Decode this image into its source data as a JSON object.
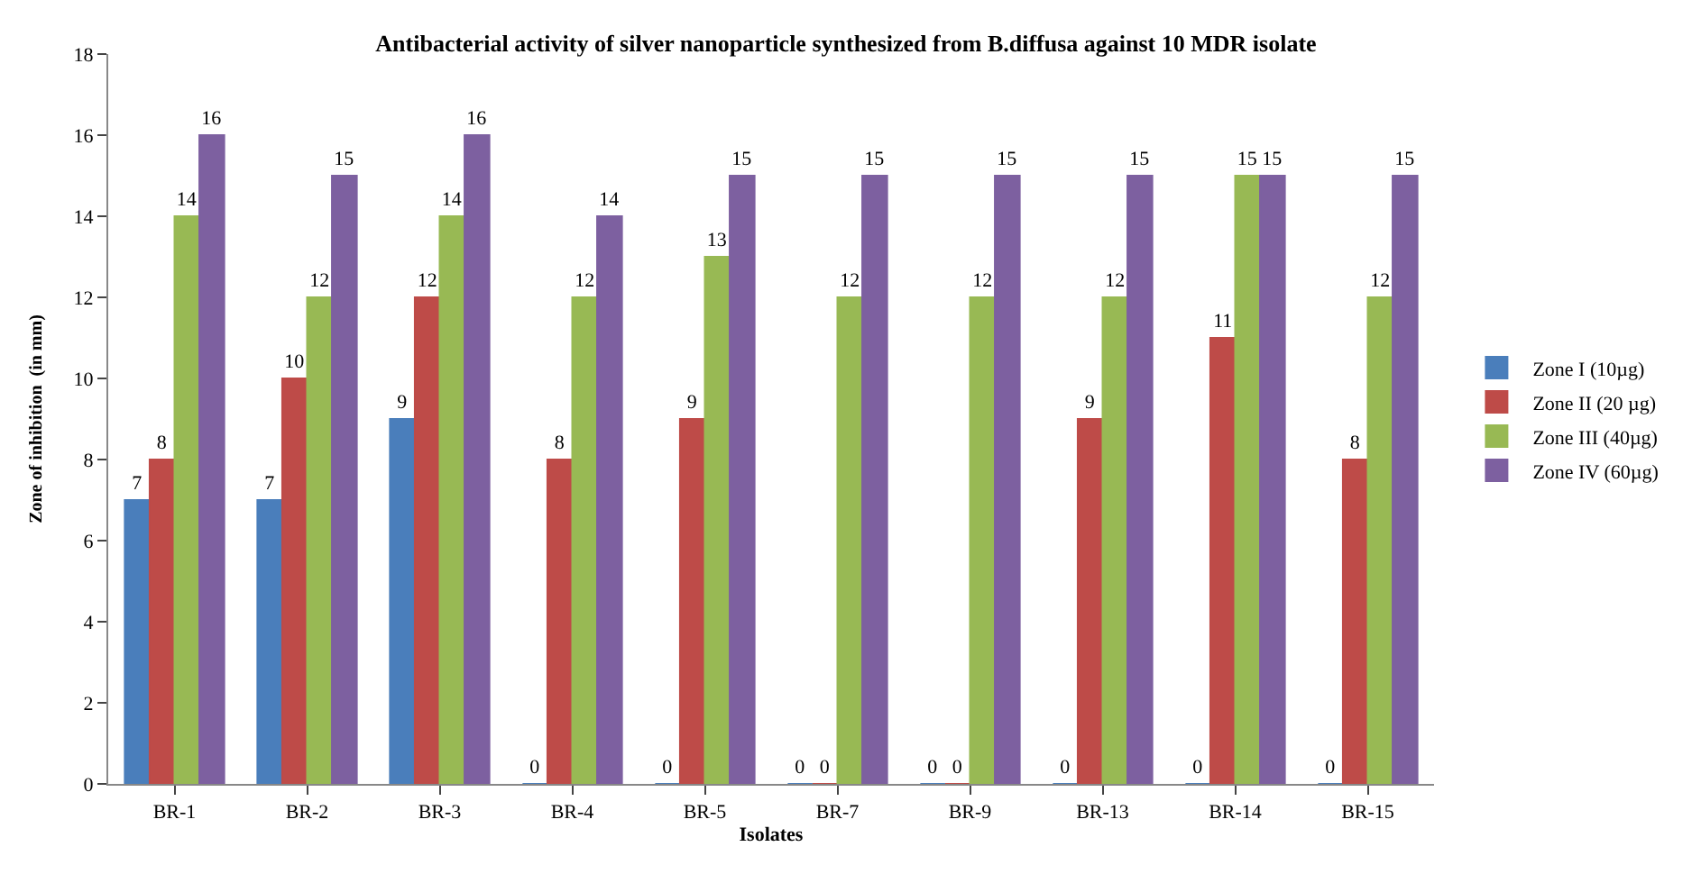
{
  "chart_data": {
    "type": "bar",
    "title": "Antibacterial activity of silver nanoparticle synthesized from B.diffusa against 10 MDR isolate",
    "xlabel": "Isolates",
    "ylabel": "Zone of inhibition  (in mm)",
    "categories": [
      "BR-1",
      "BR-2",
      "BR-3",
      "BR-4",
      "BR-5",
      "BR-7",
      "BR-9",
      "BR-13",
      "BR-14",
      "BR-15"
    ],
    "series": [
      {
        "name": "Zone I (10µg)",
        "color": "#4a7ebb",
        "values": [
          7,
          7,
          9,
          0,
          0,
          0,
          0,
          0,
          0,
          0
        ]
      },
      {
        "name": "Zone II (20 µg)",
        "color": "#be4b48",
        "values": [
          8,
          10,
          12,
          8,
          9,
          0,
          0,
          9,
          11,
          8
        ]
      },
      {
        "name": "Zone III (40µg)",
        "color": "#98b954",
        "values": [
          14,
          12,
          14,
          12,
          13,
          12,
          12,
          12,
          15,
          12
        ]
      },
      {
        "name": "Zone IV (60µg)",
        "color": "#7d60a0",
        "values": [
          16,
          15,
          16,
          14,
          15,
          15,
          15,
          15,
          15,
          15
        ]
      }
    ],
    "ylim": [
      0,
      18
    ],
    "yticks": [
      0,
      2,
      4,
      6,
      8,
      10,
      12,
      14,
      16,
      18
    ],
    "data_labels": true,
    "legend": "right"
  }
}
